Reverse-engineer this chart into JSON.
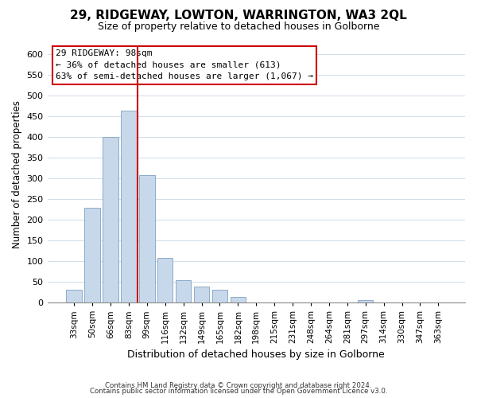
{
  "title": "29, RIDGEWAY, LOWTON, WARRINGTON, WA3 2QL",
  "subtitle": "Size of property relative to detached houses in Golborne",
  "xlabel": "Distribution of detached houses by size in Golborne",
  "ylabel": "Number of detached properties",
  "bar_labels": [
    "33sqm",
    "50sqm",
    "66sqm",
    "83sqm",
    "99sqm",
    "116sqm",
    "132sqm",
    "149sqm",
    "165sqm",
    "182sqm",
    "198sqm",
    "215sqm",
    "231sqm",
    "248sqm",
    "264sqm",
    "281sqm",
    "297sqm",
    "314sqm",
    "330sqm",
    "347sqm",
    "363sqm"
  ],
  "bar_values": [
    30,
    228,
    400,
    463,
    308,
    108,
    54,
    38,
    30,
    13,
    0,
    0,
    0,
    0,
    0,
    0,
    5,
    0,
    0,
    0,
    0
  ],
  "bar_color": "#c8d8eb",
  "bar_edge_color": "#8baac8",
  "vline_color": "#cc0000",
  "ylim": [
    0,
    620
  ],
  "yticks": [
    0,
    50,
    100,
    150,
    200,
    250,
    300,
    350,
    400,
    450,
    500,
    550,
    600
  ],
  "annotation_title": "29 RIDGEWAY: 98sqm",
  "annotation_line1": "← 36% of detached houses are smaller (613)",
  "annotation_line2": "63% of semi-detached houses are larger (1,067) →",
  "annotation_box_color": "#ffffff",
  "annotation_box_edge": "#cc0000",
  "footer1": "Contains HM Land Registry data © Crown copyright and database right 2024.",
  "footer2": "Contains public sector information licensed under the Open Government Licence v3.0.",
  "background_color": "#ffffff",
  "grid_color": "#d0dce8"
}
